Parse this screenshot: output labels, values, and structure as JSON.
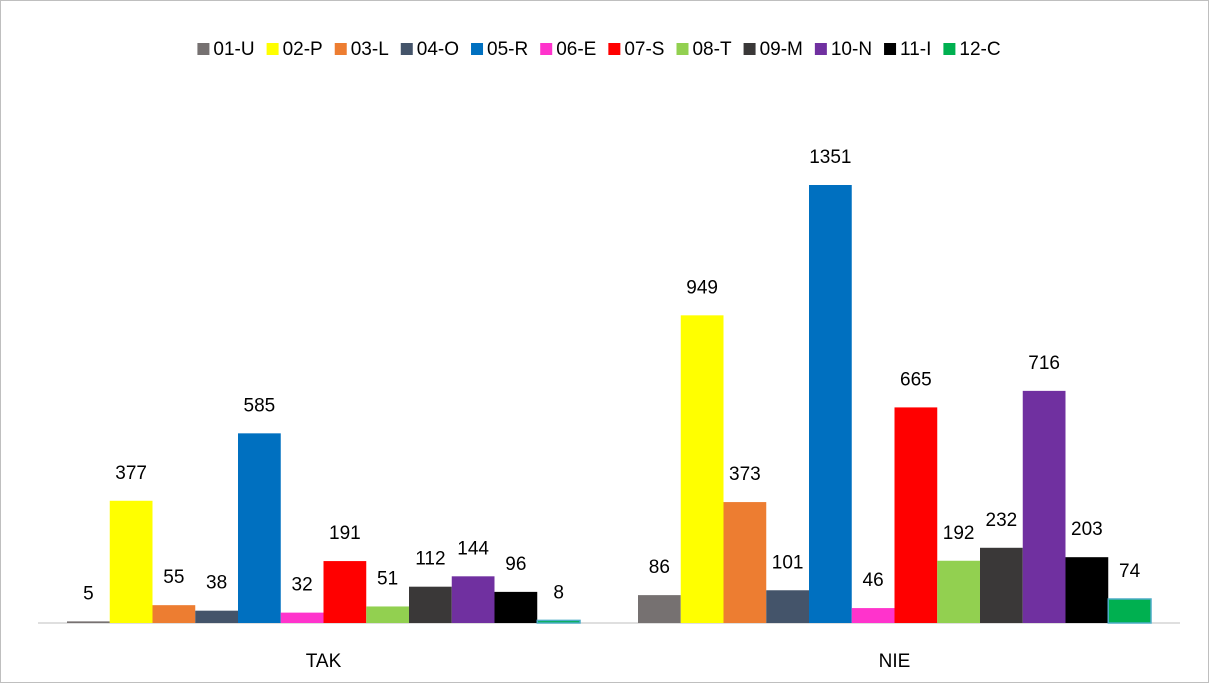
{
  "chart_data": {
    "type": "bar",
    "categories": [
      "TAK",
      "NIE"
    ],
    "legend": "top",
    "series": [
      {
        "name": "01-U",
        "color": "#767171",
        "values": [
          5,
          86
        ]
      },
      {
        "name": "02-P",
        "color": "#ffff00",
        "values": [
          377,
          949
        ]
      },
      {
        "name": "03-L",
        "color": "#ed7d31",
        "values": [
          55,
          373
        ]
      },
      {
        "name": "04-O",
        "color": "#44546a",
        "values": [
          38,
          101
        ]
      },
      {
        "name": "05-R",
        "color": "#0070c0",
        "values": [
          585,
          1351
        ]
      },
      {
        "name": "06-E",
        "color": "#ff33cc",
        "values": [
          32,
          46
        ]
      },
      {
        "name": "07-S",
        "color": "#ff0000",
        "values": [
          191,
          665
        ]
      },
      {
        "name": "08-T",
        "color": "#92d050",
        "values": [
          51,
          192
        ]
      },
      {
        "name": "09-M",
        "color": "#3a3838",
        "values": [
          112,
          232
        ]
      },
      {
        "name": "10-N",
        "color": "#7030a0",
        "values": [
          144,
          716
        ]
      },
      {
        "name": "11-I",
        "color": "#000000",
        "values": [
          96,
          203
        ]
      },
      {
        "name": "12-C",
        "color": "#00b050",
        "values": [
          8,
          74
        ]
      }
    ]
  }
}
